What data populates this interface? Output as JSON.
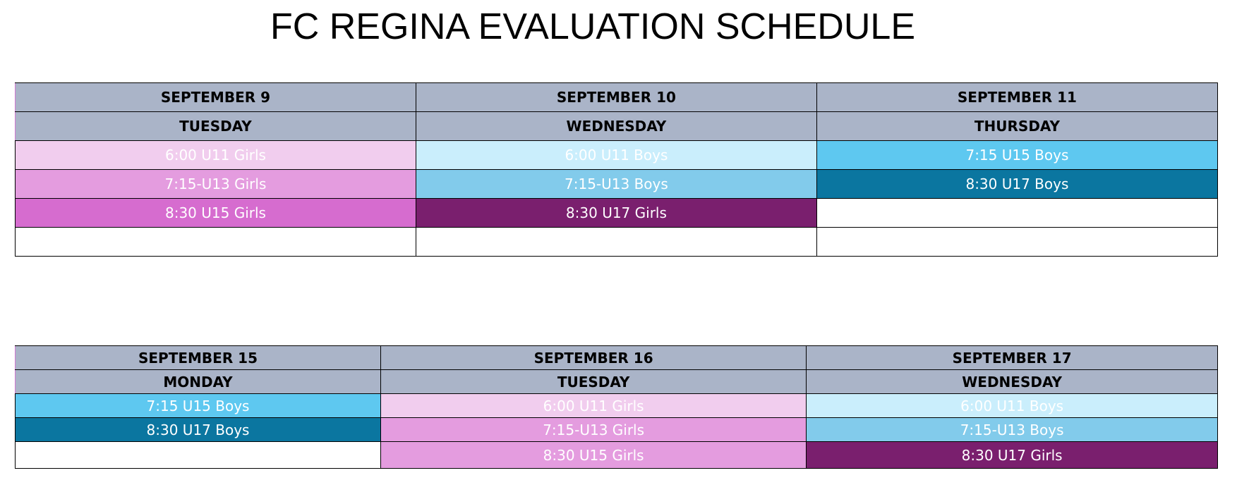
{
  "title": "FC REGINA EVALUATION SCHEDULE",
  "tables": [
    {
      "days": [
        {
          "date": "SEPTEMBER 9",
          "weekday": "TUESDAY",
          "slots": [
            {
              "label": "6:00 U11 Girls",
              "bg": "#f1cdee"
            },
            {
              "label": "7:15-U13 Girls",
              "bg": "#e49cdf"
            },
            {
              "label": "8:30 U15 Girls",
              "bg": "#d66ccf"
            },
            {
              "label": "",
              "bg": "#ffffff"
            }
          ]
        },
        {
          "date": "SEPTEMBER 10",
          "weekday": "WEDNESDAY",
          "slots": [
            {
              "label": "6:00 U11 Boys",
              "bg": "#caeefc"
            },
            {
              "label": "7:15-U13 Boys",
              "bg": "#82cbeb"
            },
            {
              "label": "8:30 U17 Girls",
              "bg": "#7a1f6e"
            },
            {
              "label": "",
              "bg": "#ffffff"
            }
          ]
        },
        {
          "date": "SEPTEMBER 11",
          "weekday": "THURSDAY",
          "slots": [
            {
              "label": "7:15 U15 Boys",
              "bg": "#5ec8f0"
            },
            {
              "label": "8:30 U17 Boys",
              "bg": "#0b76a0"
            },
            {
              "label": "",
              "bg": "#ffffff"
            },
            {
              "label": "",
              "bg": "#ffffff"
            }
          ]
        }
      ]
    },
    {
      "days": [
        {
          "date": "SEPTEMBER 15",
          "weekday": "MONDAY",
          "slots": [
            {
              "label": "7:15 U15 Boys",
              "bg": "#5ec8f0"
            },
            {
              "label": "8:30 U17 Boys",
              "bg": "#0b76a0"
            },
            {
              "label": "",
              "bg": "#ffffff"
            }
          ]
        },
        {
          "date": "SEPTEMBER 16",
          "weekday": "TUESDAY",
          "slots": [
            {
              "label": "6:00 U11 Girls",
              "bg": "#f1cdee"
            },
            {
              "label": "7:15-U13 Girls",
              "bg": "#e49cdf"
            },
            {
              "label": "8:30 U15 Girls",
              "bg": "#e49cdf"
            }
          ]
        },
        {
          "date": "SEPTEMBER 17",
          "weekday": "WEDNESDAY",
          "slots": [
            {
              "label": "6:00 U11 Boys",
              "bg": "#caeefc"
            },
            {
              "label": "7:15-U13 Boys",
              "bg": "#82cbeb"
            },
            {
              "label": "8:30 U17 Girls",
              "bg": "#7a1f6e"
            }
          ]
        }
      ]
    }
  ]
}
